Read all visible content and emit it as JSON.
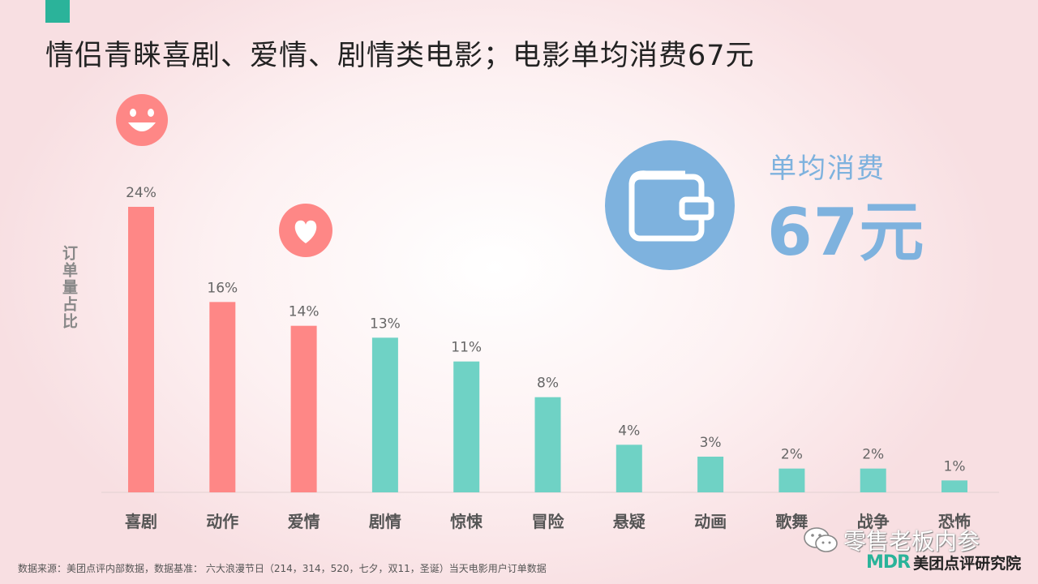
{
  "title": "情侣青睐喜剧、爱情、剧情类电影；电影单均消费67元",
  "y_axis_label": "订单量占比",
  "spend": {
    "label": "单均消费",
    "value": "67元"
  },
  "source_note": "数据来源：美团点评内部数据，数据基准：  六大浪漫节日（214，314，520，七夕，双11，圣诞）当天电影用户订单数据",
  "watermark": "零售老板内参",
  "brand": {
    "logo": "MDR",
    "name": "美团点评研究院"
  },
  "colors": {
    "highlight": "#fe8786",
    "normal": "#6fd2c5",
    "accent": "#7eb2de",
    "corner": "#2bb39a"
  },
  "chart_data": {
    "type": "bar",
    "categories": [
      "喜剧",
      "动作",
      "爱情",
      "剧情",
      "惊悚",
      "冒险",
      "悬疑",
      "动画",
      "歌舞",
      "战争",
      "恐怖"
    ],
    "values": [
      24,
      16,
      14,
      13,
      11,
      8,
      4,
      3,
      2,
      2,
      1
    ],
    "data_labels": [
      "24%",
      "16%",
      "14%",
      "13%",
      "11%",
      "8%",
      "4%",
      "3%",
      "2%",
      "2%",
      "1%"
    ],
    "highlighted": [
      "喜剧",
      "动作",
      "爱情"
    ],
    "ylabel": "订单量占比",
    "ylim": [
      0,
      24
    ],
    "grid": false,
    "legend": "none"
  }
}
